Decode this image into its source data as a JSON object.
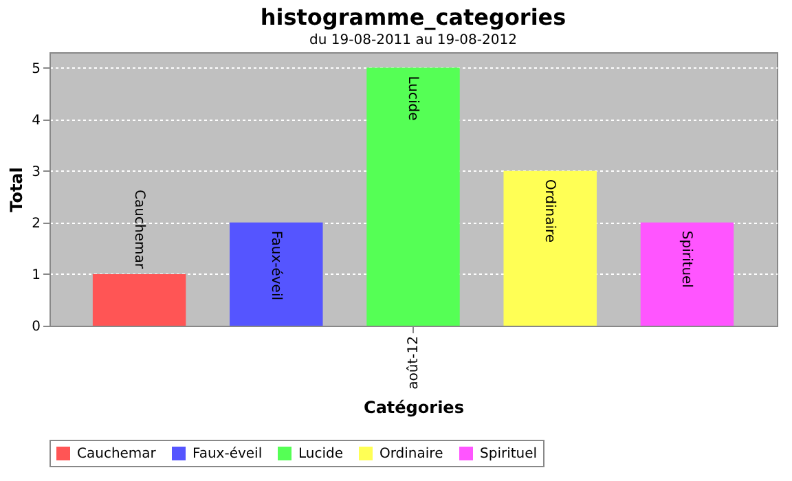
{
  "chart_data": {
    "type": "bar",
    "title": "histogramme_categories",
    "subtitle": "du 19-08-2011 au 19-08-2012",
    "xlabel": "Catégories",
    "ylabel": "Total",
    "categories": [
      "août-12"
    ],
    "series": [
      {
        "name": "Cauchemar",
        "color": "#ff5555",
        "values": [
          1
        ]
      },
      {
        "name": "Faux-éveil",
        "color": "#5555ff",
        "values": [
          2
        ]
      },
      {
        "name": "Lucide",
        "color": "#55ff55",
        "values": [
          5
        ]
      },
      {
        "name": "Ordinaire",
        "color": "#ffff55",
        "values": [
          3
        ]
      },
      {
        "name": "Spirituel",
        "color": "#ff55ff",
        "values": [
          2
        ]
      }
    ],
    "annotations": [
      "Cauchemar",
      "Faux-éveil",
      "Lucide",
      "Ordinaire",
      "Spirituel"
    ],
    "ylim": [
      0,
      5.3
    ],
    "yticks": [
      0,
      1,
      2,
      3,
      4,
      5
    ],
    "grid": "y",
    "legend": "bottom"
  }
}
